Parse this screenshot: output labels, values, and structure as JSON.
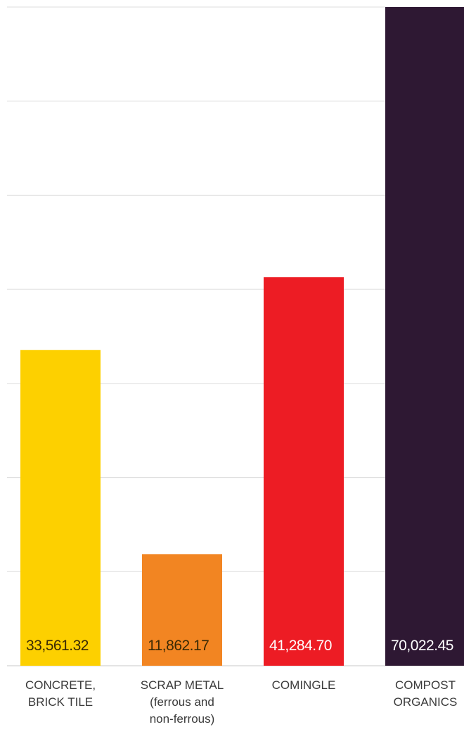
{
  "chart_data": {
    "type": "bar",
    "categories": [
      "CONCRETE,\nBRICK TILE",
      "SCRAP METAL\n(ferrous and\nnon-ferrous)",
      "COMINGLE",
      "COMPOST\nORGANICS"
    ],
    "values": [
      33561.32,
      11862.17,
      41284.7,
      70022.45
    ],
    "value_labels": [
      "33,561.32",
      "11,862.17",
      "41,284.70",
      "70,022.45"
    ],
    "colors": [
      "#FDD000",
      "#F28522",
      "#ED1C24",
      "#2E1833"
    ],
    "label_colors": [
      "#3a2a05",
      "#3a2a05",
      "#ffffff",
      "#ffffff"
    ],
    "ylim": [
      0,
      70000
    ],
    "grid": true,
    "legend": "none"
  }
}
